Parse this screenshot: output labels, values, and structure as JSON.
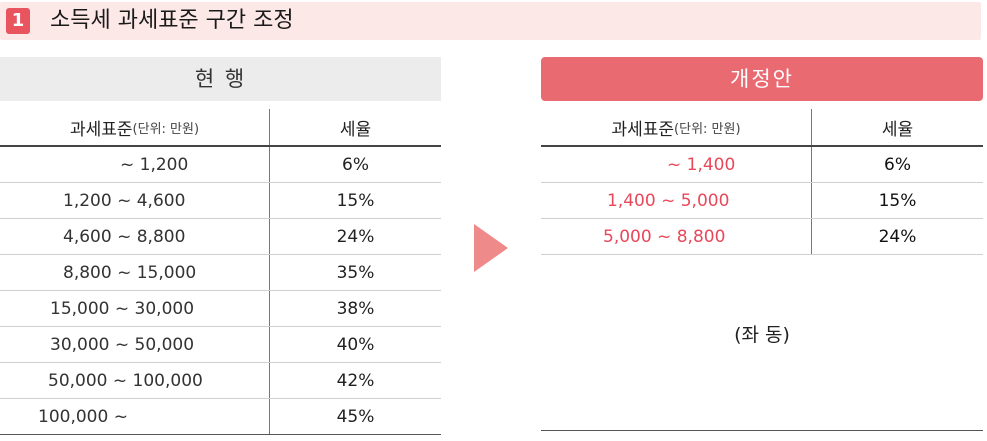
{
  "title": {
    "number": "1",
    "text": "소득세 과세표준 구간 조정"
  },
  "current": {
    "heading": "현 행",
    "header": {
      "base_label": "과세표준",
      "unit": "(단위: 만원)",
      "rate_label": "세율"
    },
    "rows": [
      {
        "range": "~ 1,200",
        "rate": "6%"
      },
      {
        "range": "1,200 ~ 4,600",
        "rate": "15%"
      },
      {
        "range": "4,600 ~ 8,800",
        "rate": "24%"
      },
      {
        "range": "8,800 ~ 15,000",
        "rate": "35%"
      },
      {
        "range": "15,000 ~ 30,000",
        "rate": "38%"
      },
      {
        "range": "30,000 ~ 50,000",
        "rate": "40%"
      },
      {
        "range": "50,000 ~ 100,000",
        "rate": "42%"
      },
      {
        "range": "100,000 ~",
        "rate": "45%"
      }
    ]
  },
  "proposed": {
    "heading": "개정안",
    "header": {
      "base_label": "과세표준",
      "unit": "(단위: 만원)",
      "rate_label": "세율"
    },
    "rows": [
      {
        "range": "~ 1,400",
        "rate": "6%"
      },
      {
        "range": "1,400 ~ 5,000",
        "rate": "15%"
      },
      {
        "range": "5,000 ~ 8,800",
        "rate": "24%"
      }
    ],
    "same_note": "(좌 동)"
  },
  "colors": {
    "accent": "#e8555f",
    "highlight_text": "#e8485a",
    "title_bg": "#fde8e8",
    "arrow": "#ef8a8a"
  }
}
